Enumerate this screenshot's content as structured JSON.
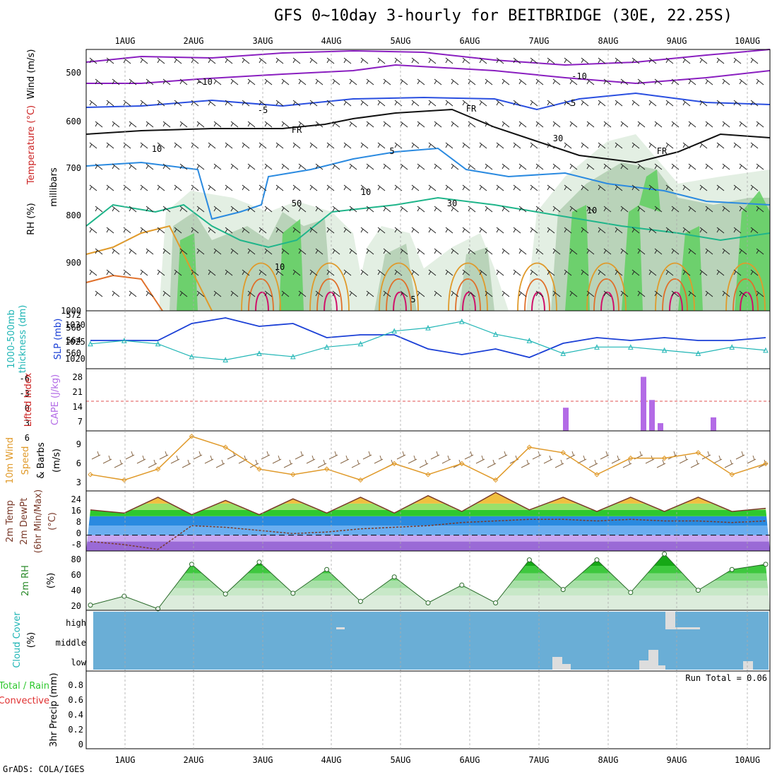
{
  "title": "GFS 0~10day 3-hourly for BEITBRIDGE (30E, 22.25S)",
  "credit": "GrADS: COLA/IGES",
  "x_axis": {
    "labels": [
      "1AUG",
      "2AUG",
      "3AUG",
      "4AUG",
      "5AUG",
      "6AUG",
      "7AUG",
      "8AUG",
      "9AUG",
      "10AUG"
    ]
  },
  "colors": {
    "rh_green": "#2ec82e",
    "temp_blue": "#2222cc",
    "temp_red": "#cc2222",
    "cape_purple": "#b36be6",
    "wind_orange": "#e09a2a",
    "slp_blue": "#1a3fd6",
    "thickness_cyan": "#1fb5b5",
    "cloud_bg": "#6aaed6",
    "precip_green": "#2ec82e"
  },
  "panels": {
    "upper_air": {
      "ylabels": [
        "RH (%)",
        "Temperature (°C)",
        "Wind (m/s)",
        "millibars"
      ],
      "ticks": [
        "500",
        "600",
        "700",
        "800",
        "900",
        "1000"
      ],
      "contour_labels": [
        "-10",
        "-10",
        "-5",
        "-5",
        "5",
        "10",
        "10",
        "5",
        "FR",
        "FR",
        "FR",
        "50",
        "30",
        "30",
        "10",
        "10"
      ]
    },
    "slp": {
      "ylabels": [
        "1000-500mb",
        "thickness (dm)",
        "SLP (mb)"
      ],
      "left_ticks": [
        "572",
        "568",
        "564",
        "560"
      ],
      "right_ticks": [
        "1030",
        "1025",
        "1020"
      ]
    },
    "cape": {
      "ylabels": [
        "Lifted Index",
        "CAPE (J/kg)"
      ],
      "left_ticks": [
        "-6",
        "-3",
        "0",
        "3",
        "6"
      ],
      "right_ticks": [
        "28",
        "21",
        "14",
        "7"
      ]
    },
    "wind10m": {
      "ylabels": [
        "10m Wind",
        "Speed",
        "& Barbs",
        "(m/s)"
      ],
      "ticks": [
        "9",
        "6",
        "3"
      ]
    },
    "temp2m": {
      "ylabels": [
        "2m Temp",
        "2m DewPt",
        "(6hr Min/Max)",
        "(°C)"
      ],
      "ticks": [
        "24",
        "16",
        "8",
        "0",
        "-8"
      ]
    },
    "rh2m": {
      "ylabels": [
        "2m RH",
        "(%)"
      ],
      "ticks": [
        "80",
        "60",
        "40",
        "20"
      ]
    },
    "cloud": {
      "ylabels": [
        "Cloud Cover",
        "(%)"
      ],
      "ticks": [
        "high",
        "middle",
        "low"
      ]
    },
    "precip": {
      "ylabels": [
        "Total / Rain",
        "Convective",
        "3hr Precip (mm)"
      ],
      "ticks": [
        "0.8",
        "0.6",
        "0.4",
        "0.2",
        "0"
      ],
      "run_total": "Run Total = 0.06"
    }
  },
  "chart_data": [
    {
      "type": "line",
      "title": "",
      "xlabel": "",
      "ylabel": "SLP (mb)",
      "ylim": [
        1016,
        1033
      ],
      "x": [
        "31Jul06",
        "1AUG00",
        "1AUG12",
        "2AUG00",
        "2AUG12",
        "3AUG00",
        "3AUG12",
        "4AUG00",
        "4AUG12",
        "5AUG00",
        "5AUG12",
        "6AUG00",
        "6AUG12",
        "7AUG00",
        "7AUG12",
        "8AUG00",
        "8AUG12",
        "9AUG00",
        "9AUG12",
        "10AUG00",
        "10AUG06"
      ],
      "series": [
        {
          "name": "SLP (mb)",
          "values": [
            1024,
            1024,
            1024,
            1030,
            1032,
            1029,
            1030,
            1025,
            1026,
            1026,
            1021,
            1019,
            1021,
            1018,
            1023,
            1025,
            1024,
            1025,
            1024,
            1024,
            1025
          ]
        },
        {
          "name": "1000-500mb thickness (dm)",
          "values": [
            564,
            565,
            564,
            560,
            559,
            561,
            560,
            563,
            564,
            568,
            569,
            571,
            567,
            565,
            561,
            563,
            563,
            562,
            561,
            563,
            562
          ]
        }
      ]
    },
    {
      "type": "bar",
      "title": "",
      "ylabel": "CAPE (J/kg)",
      "ylim": [
        0,
        30
      ],
      "categories": [
        "7AUG18",
        "8AUG15",
        "8AUG18",
        "8AUG21",
        "9AUG15"
      ],
      "values": [
        12,
        28,
        16,
        4,
        7
      ]
    },
    {
      "type": "line",
      "title": "",
      "ylabel": "10m Wind Speed (m/s)",
      "ylim": [
        0,
        11
      ],
      "x": [
        "31Jul06",
        "1AUG00",
        "1AUG12",
        "2AUG00",
        "2AUG12",
        "3AUG00",
        "3AUG12",
        "4AUG00",
        "4AUG12",
        "5AUG00",
        "5AUG12",
        "6AUG00",
        "6AUG12",
        "7AUG00",
        "7AUG12",
        "8AUG00",
        "8AUG12",
        "9AUG00",
        "9AUG12",
        "10AUG00",
        "10AUG06"
      ],
      "series": [
        {
          "name": "10m Wind Speed",
          "values": [
            3,
            2,
            4,
            10,
            8,
            4,
            3,
            4,
            2,
            5,
            3,
            5,
            2,
            8,
            7,
            3,
            6,
            6,
            7,
            3,
            5
          ]
        }
      ]
    },
    {
      "type": "area",
      "title": "",
      "ylabel": "2m Temp (°C)",
      "ylim": [
        -10,
        28
      ],
      "x": [
        "31Jul06",
        "1AUG00",
        "1AUG12",
        "2AUG00",
        "2AUG12",
        "3AUG00",
        "3AUG12",
        "4AUG00",
        "4AUG12",
        "5AUG00",
        "5AUG12",
        "6AUG00",
        "6AUG12",
        "7AUG00",
        "7AUG12",
        "8AUG00",
        "8AUG12",
        "9AUG00",
        "9AUG12",
        "10AUG00",
        "10AUG06"
      ],
      "series": [
        {
          "name": "2m Temp",
          "values": [
            16,
            14,
            24,
            13,
            22,
            13,
            23,
            14,
            24,
            14,
            25,
            15,
            27,
            16,
            24,
            15,
            24,
            15,
            24,
            15,
            17
          ]
        },
        {
          "name": "2m DewPt",
          "values": [
            -4,
            -6,
            -9,
            6,
            5,
            3,
            1,
            2,
            4,
            5,
            6,
            8,
            9,
            10,
            10,
            9,
            10,
            9,
            9,
            8,
            9
          ]
        }
      ]
    },
    {
      "type": "area",
      "title": "",
      "ylabel": "2m RH (%)",
      "ylim": [
        10,
        90
      ],
      "x": [
        "31Jul06",
        "1AUG00",
        "1AUG12",
        "2AUG00",
        "2AUG12",
        "3AUG00",
        "3AUG12",
        "4AUG00",
        "4AUG12",
        "5AUG00",
        "5AUG12",
        "6AUG00",
        "6AUG12",
        "7AUG00",
        "7AUG12",
        "8AUG00",
        "8AUG12",
        "9AUG00",
        "9AUG12",
        "10AUG00",
        "10AUG06"
      ],
      "series": [
        {
          "name": "2m RH",
          "values": [
            17,
            29,
            12,
            72,
            32,
            75,
            33,
            65,
            22,
            55,
            20,
            44,
            20,
            78,
            38,
            78,
            34,
            86,
            37,
            65,
            72
          ]
        }
      ]
    },
    {
      "type": "bar",
      "title": "",
      "ylabel": "3hr Precip (mm)",
      "ylim": [
        0,
        1
      ],
      "categories": [],
      "values": []
    }
  ]
}
